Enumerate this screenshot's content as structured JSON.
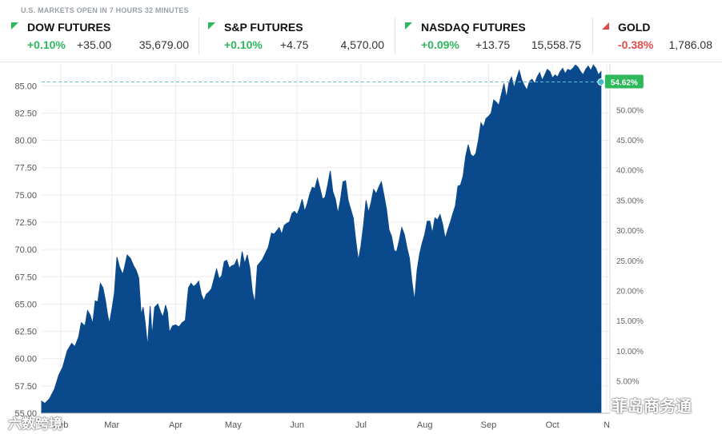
{
  "status": "U.S. MARKETS OPEN IN 7 HOURS 32 MINUTES",
  "tickers": [
    {
      "name": "DOW FUTURES",
      "direction": "up",
      "pct": "+0.10%",
      "change": "+35.00",
      "last": "35,679.00"
    },
    {
      "name": "S&P FUTURES",
      "direction": "up",
      "pct": "+0.10%",
      "change": "+4.75",
      "last": "4,570.00"
    },
    {
      "name": "NASDAQ FUTURES",
      "direction": "up",
      "pct": "+0.09%",
      "change": "+13.75",
      "last": "15,558.75"
    },
    {
      "name": "GOLD",
      "direction": "down",
      "pct": "-0.38%",
      "change": "",
      "last": "1,786.08"
    }
  ],
  "colors": {
    "up": "#2eb85c",
    "down": "#e24b4b",
    "area": "#0a4a8c",
    "badge": "#2eb85c",
    "grid": "#ececec"
  },
  "watermark": {
    "left": "六数跨境",
    "right": "菲岛商务通"
  },
  "chart_data": {
    "type": "area",
    "title": "",
    "xlabel": "",
    "ylabel": "",
    "ylim": [
      55,
      87
    ],
    "y_ticks": [
      "55.00",
      "57.50",
      "60.00",
      "62.50",
      "65.00",
      "67.50",
      "70.00",
      "72.50",
      "75.00",
      "77.50",
      "80.00",
      "82.50",
      "85.00"
    ],
    "y_tick_values": [
      55,
      57.5,
      60,
      62.5,
      65,
      67.5,
      70,
      72.5,
      75,
      77.5,
      80,
      82.5,
      85
    ],
    "y2_ticks": [
      "5.00%",
      "10.00%",
      "15.00%",
      "20.00%",
      "25.00%",
      "30.00%",
      "35.00%",
      "40.00%",
      "45.00%",
      "50.00%"
    ],
    "y2_tick_values": [
      5,
      10,
      15,
      20,
      25,
      30,
      35,
      40,
      45,
      50
    ],
    "y2_base": 55.2,
    "x_months": [
      "Feb",
      "Mar",
      "Apr",
      "May",
      "Jun",
      "Jul",
      "Aug",
      "Sep",
      "Oct",
      "N"
    ],
    "x_month_positions": [
      0.3,
      1.1,
      2.1,
      3.0,
      4.0,
      5.0,
      6.0,
      7.0,
      8.0,
      8.85
    ],
    "x_range": [
      0,
      8.9
    ],
    "last_label": "54.62%",
    "last_value": 85.35,
    "points": [
      [
        0.0,
        56.1
      ],
      [
        0.05,
        55.9
      ],
      [
        0.12,
        56.3
      ],
      [
        0.2,
        57.2
      ],
      [
        0.27,
        58.5
      ],
      [
        0.33,
        59.2
      ],
      [
        0.4,
        60.7
      ],
      [
        0.47,
        61.4
      ],
      [
        0.52,
        61.1
      ],
      [
        0.58,
        62.0
      ],
      [
        0.62,
        63.3
      ],
      [
        0.68,
        63.0
      ],
      [
        0.72,
        64.4
      ],
      [
        0.76,
        64.0
      ],
      [
        0.8,
        63.2
      ],
      [
        0.84,
        65.3
      ],
      [
        0.88,
        65.2
      ],
      [
        0.92,
        66.9
      ],
      [
        0.96,
        66.5
      ],
      [
        1.0,
        65.3
      ],
      [
        1.03,
        64.1
      ],
      [
        1.06,
        63.2
      ],
      [
        1.1,
        64.5
      ],
      [
        1.14,
        66.0
      ],
      [
        1.18,
        69.3
      ],
      [
        1.22,
        68.4
      ],
      [
        1.27,
        67.7
      ],
      [
        1.3,
        68.4
      ],
      [
        1.34,
        69.5
      ],
      [
        1.39,
        69.2
      ],
      [
        1.44,
        68.5
      ],
      [
        1.48,
        68.1
      ],
      [
        1.52,
        67.4
      ],
      [
        1.56,
        64.0
      ],
      [
        1.59,
        64.7
      ],
      [
        1.62,
        63.4
      ],
      [
        1.66,
        61.1
      ],
      [
        1.7,
        64.8
      ],
      [
        1.73,
        62.1
      ],
      [
        1.77,
        64.7
      ],
      [
        1.82,
        65.0
      ],
      [
        1.86,
        64.3
      ],
      [
        1.9,
        63.8
      ],
      [
        1.94,
        64.9
      ],
      [
        1.97,
        64.3
      ],
      [
        2.0,
        62.4
      ],
      [
        2.05,
        63.0
      ],
      [
        2.1,
        63.1
      ],
      [
        2.15,
        62.9
      ],
      [
        2.2,
        63.3
      ],
      [
        2.25,
        63.5
      ],
      [
        2.3,
        66.5
      ],
      [
        2.34,
        66.9
      ],
      [
        2.38,
        66.6
      ],
      [
        2.42,
        66.8
      ],
      [
        2.46,
        67.1
      ],
      [
        2.5,
        65.9
      ],
      [
        2.54,
        65.3
      ],
      [
        2.58,
        65.9
      ],
      [
        2.62,
        66.1
      ],
      [
        2.66,
        66.4
      ],
      [
        2.7,
        67.3
      ],
      [
        2.74,
        68.2
      ],
      [
        2.78,
        67.3
      ],
      [
        2.82,
        67.6
      ],
      [
        2.86,
        68.9
      ],
      [
        2.9,
        69.0
      ],
      [
        2.94,
        68.3
      ],
      [
        2.98,
        68.5
      ],
      [
        3.02,
        68.6
      ],
      [
        3.06,
        69.1
      ],
      [
        3.1,
        68.1
      ],
      [
        3.14,
        69.8
      ],
      [
        3.18,
        68.7
      ],
      [
        3.22,
        69.5
      ],
      [
        3.26,
        68.3
      ],
      [
        3.3,
        66.1
      ],
      [
        3.34,
        65.1
      ],
      [
        3.38,
        68.5
      ],
      [
        3.42,
        68.8
      ],
      [
        3.46,
        69.1
      ],
      [
        3.5,
        69.6
      ],
      [
        3.55,
        70.2
      ],
      [
        3.6,
        71.5
      ],
      [
        3.64,
        71.4
      ],
      [
        3.68,
        71.7
      ],
      [
        3.72,
        72.0
      ],
      [
        3.76,
        71.4
      ],
      [
        3.8,
        72.2
      ],
      [
        3.84,
        72.4
      ],
      [
        3.88,
        72.5
      ],
      [
        3.92,
        73.3
      ],
      [
        3.96,
        73.5
      ],
      [
        4.0,
        73.2
      ],
      [
        4.04,
        73.8
      ],
      [
        4.08,
        74.6
      ],
      [
        4.12,
        73.5
      ],
      [
        4.16,
        74.2
      ],
      [
        4.2,
        75.1
      ],
      [
        4.24,
        75.7
      ],
      [
        4.28,
        75.6
      ],
      [
        4.32,
        76.5
      ],
      [
        4.36,
        75.6
      ],
      [
        4.4,
        74.6
      ],
      [
        4.44,
        74.8
      ],
      [
        4.48,
        75.9
      ],
      [
        4.52,
        77.2
      ],
      [
        4.56,
        75.3
      ],
      [
        4.6,
        74.6
      ],
      [
        4.64,
        73.3
      ],
      [
        4.68,
        74.5
      ],
      [
        4.72,
        76.2
      ],
      [
        4.76,
        76.3
      ],
      [
        4.8,
        74.5
      ],
      [
        4.84,
        73.7
      ],
      [
        4.88,
        72.9
      ],
      [
        4.92,
        70.8
      ],
      [
        4.96,
        69.0
      ],
      [
        5.0,
        70.3
      ],
      [
        5.04,
        72.2
      ],
      [
        5.08,
        74.5
      ],
      [
        5.12,
        73.4
      ],
      [
        5.16,
        74.3
      ],
      [
        5.2,
        75.5
      ],
      [
        5.24,
        75.1
      ],
      [
        5.28,
        75.7
      ],
      [
        5.32,
        76.2
      ],
      [
        5.36,
        75.0
      ],
      [
        5.4,
        73.7
      ],
      [
        5.44,
        71.8
      ],
      [
        5.48,
        71.2
      ],
      [
        5.52,
        69.9
      ],
      [
        5.56,
        69.8
      ],
      [
        5.6,
        70.8
      ],
      [
        5.64,
        72.0
      ],
      [
        5.68,
        71.4
      ],
      [
        5.72,
        70.2
      ],
      [
        5.76,
        69.2
      ],
      [
        5.8,
        67.0
      ],
      [
        5.84,
        65.3
      ],
      [
        5.88,
        68.1
      ],
      [
        5.92,
        69.6
      ],
      [
        5.96,
        70.6
      ],
      [
        6.0,
        71.4
      ],
      [
        6.04,
        72.6
      ],
      [
        6.08,
        72.6
      ],
      [
        6.12,
        71.5
      ],
      [
        6.16,
        72.9
      ],
      [
        6.2,
        72.7
      ],
      [
        6.24,
        73.2
      ],
      [
        6.28,
        72.3
      ],
      [
        6.32,
        71.0
      ],
      [
        6.36,
        71.8
      ],
      [
        6.4,
        72.5
      ],
      [
        6.44,
        73.3
      ],
      [
        6.48,
        74.0
      ],
      [
        6.52,
        75.8
      ],
      [
        6.56,
        75.9
      ],
      [
        6.6,
        76.7
      ],
      [
        6.64,
        78.5
      ],
      [
        6.68,
        79.6
      ],
      [
        6.72,
        78.7
      ],
      [
        6.76,
        78.5
      ],
      [
        6.8,
        78.8
      ],
      [
        6.84,
        80.0
      ],
      [
        6.88,
        81.6
      ],
      [
        6.92,
        81.2
      ],
      [
        6.96,
        82.0
      ],
      [
        7.0,
        82.2
      ],
      [
        7.04,
        82.5
      ],
      [
        7.08,
        83.7
      ],
      [
        7.12,
        83.5
      ],
      [
        7.16,
        83.2
      ],
      [
        7.2,
        84.2
      ],
      [
        7.24,
        85.2
      ],
      [
        7.28,
        83.9
      ],
      [
        7.32,
        85.3
      ],
      [
        7.36,
        85.8
      ],
      [
        7.4,
        84.8
      ],
      [
        7.44,
        85.7
      ],
      [
        7.48,
        86.4
      ],
      [
        7.52,
        85.5
      ],
      [
        7.56,
        85.0
      ],
      [
        7.6,
        84.6
      ],
      [
        7.64,
        85.4
      ],
      [
        7.68,
        85.6
      ],
      [
        7.72,
        85.2
      ],
      [
        7.76,
        85.8
      ],
      [
        7.8,
        86.2
      ],
      [
        7.84,
        85.5
      ],
      [
        7.88,
        86.0
      ],
      [
        7.92,
        86.5
      ],
      [
        7.96,
        86.3
      ],
      [
        8.0,
        85.7
      ],
      [
        8.04,
        86.0
      ],
      [
        8.08,
        85.8
      ],
      [
        8.12,
        86.3
      ],
      [
        8.16,
        86.6
      ],
      [
        8.2,
        86.1
      ],
      [
        8.24,
        86.5
      ],
      [
        8.28,
        86.4
      ],
      [
        8.32,
        86.6
      ],
      [
        8.36,
        86.9
      ],
      [
        8.4,
        86.7
      ],
      [
        8.44,
        86.3
      ],
      [
        8.48,
        86.0
      ],
      [
        8.52,
        86.5
      ],
      [
        8.56,
        86.8
      ],
      [
        8.6,
        86.4
      ],
      [
        8.64,
        86.9
      ],
      [
        8.68,
        86.6
      ],
      [
        8.72,
        86.0
      ],
      [
        8.76,
        86.3
      ]
    ]
  }
}
